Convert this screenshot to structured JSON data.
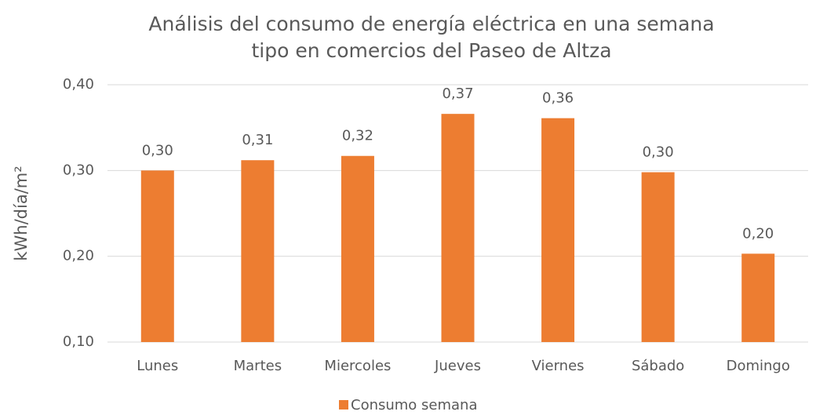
{
  "chart_data": {
    "type": "bar",
    "title": "Análisis del consumo de energía eléctrica en una semana tipo en comercios del Paseo de Altza",
    "y_label": "kWh/día/m²",
    "categories": [
      "Lunes",
      "Martes",
      "Miercoles",
      "Jueves",
      "Viernes",
      "Sábado",
      "Domingo"
    ],
    "series": [
      {
        "name": "Consumo semana",
        "color": "#ed7d31",
        "values": [
          0.3,
          0.312,
          0.317,
          0.366,
          0.361,
          0.298,
          0.203
        ],
        "value_labels": [
          "0,30",
          "0,31",
          "0,32",
          "0,37",
          "0,36",
          "0,30",
          "0,20"
        ]
      }
    ],
    "ylim": [
      0.1,
      0.4
    ],
    "yticks": [
      {
        "value": 0.1,
        "label": "0,10"
      },
      {
        "value": 0.2,
        "label": "0,20"
      },
      {
        "value": 0.3,
        "label": "0,30"
      },
      {
        "value": 0.4,
        "label": "0,40"
      }
    ],
    "grid": true,
    "legend": "bottom"
  }
}
